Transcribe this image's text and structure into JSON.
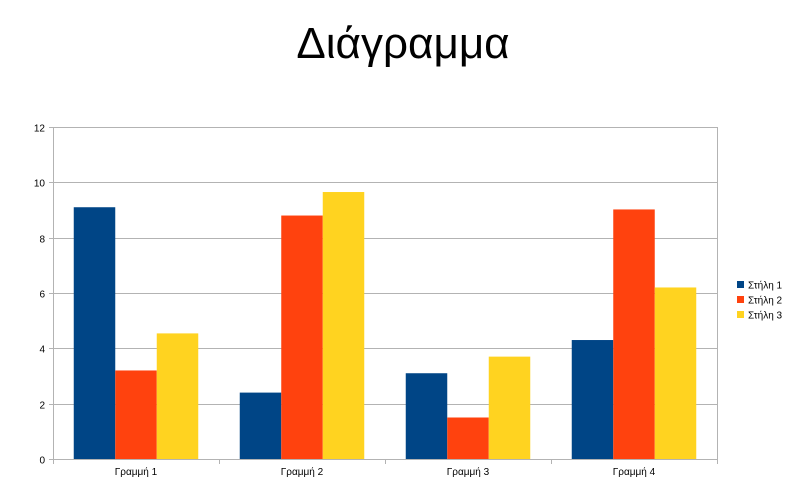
{
  "chart_data": {
    "type": "bar",
    "title": "Διάγραμμα",
    "xlabel": "",
    "ylabel": "",
    "categories": [
      "Γραμμή 1",
      "Γραμμή 2",
      "Γραμμή 3",
      "Γραμμή 4"
    ],
    "series": [
      {
        "name": "Στήλη 1",
        "color": "#004586",
        "values": [
          9.1,
          2.4,
          3.1,
          4.3
        ]
      },
      {
        "name": "Στήλη 2",
        "color": "#ff420e",
        "values": [
          3.2,
          8.8,
          1.5,
          9.02
        ]
      },
      {
        "name": "Στήλη 3",
        "color": "#ffd320",
        "values": [
          4.54,
          9.65,
          3.7,
          6.2
        ]
      }
    ],
    "ylim": [
      0,
      12
    ],
    "yticks": [
      "0",
      "2",
      "4",
      "6",
      "8",
      "10",
      "12"
    ],
    "grid": true,
    "legend_position": "right"
  }
}
